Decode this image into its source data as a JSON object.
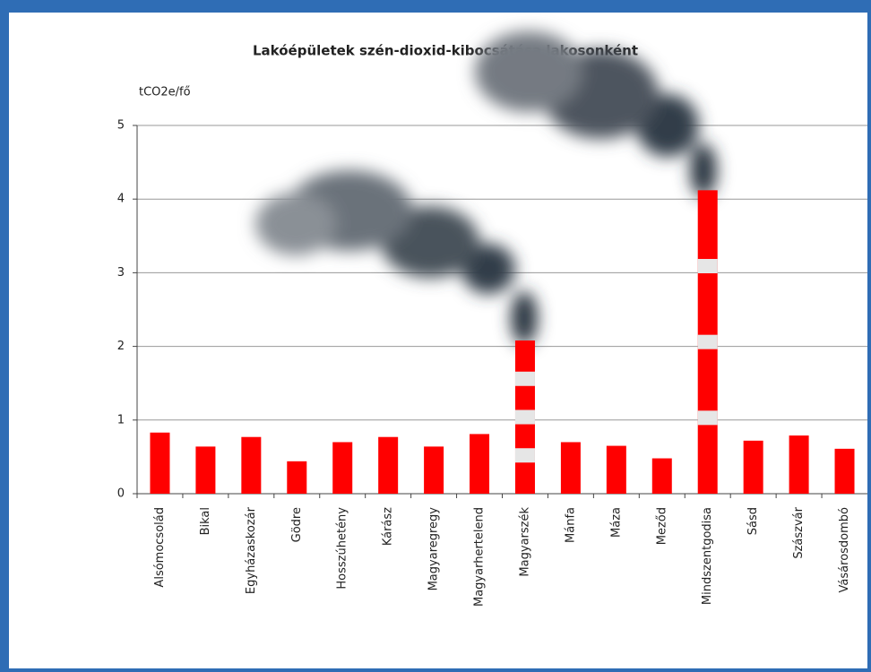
{
  "chart_data": {
    "type": "bar",
    "title": "Lakóépületek szén-dioxid-kibocsátása lakosonként",
    "y_label": "tCO2e/fő",
    "categories": [
      "Alsómocsolád",
      "Bikal",
      "Egyházaskozár",
      "Gödre",
      "Hosszúhetény",
      "Kárász",
      "Magyaregregy",
      "Magyarhertelend",
      "Magyarszék",
      "Mánfa",
      "Máza",
      "Meződ",
      "Mindszentgodisa",
      "Sásd",
      "Szászvár",
      "Vásárosdombó"
    ],
    "values": [
      0.83,
      0.64,
      0.77,
      0.44,
      0.7,
      0.77,
      0.64,
      0.81,
      2.08,
      0.7,
      0.65,
      0.48,
      4.12,
      0.72,
      0.79,
      0.61
    ],
    "color": "#ff0000",
    "ylim": [
      0,
      5
    ],
    "yticks": [
      0,
      1,
      2,
      3,
      4,
      5
    ],
    "grid": true
  }
}
